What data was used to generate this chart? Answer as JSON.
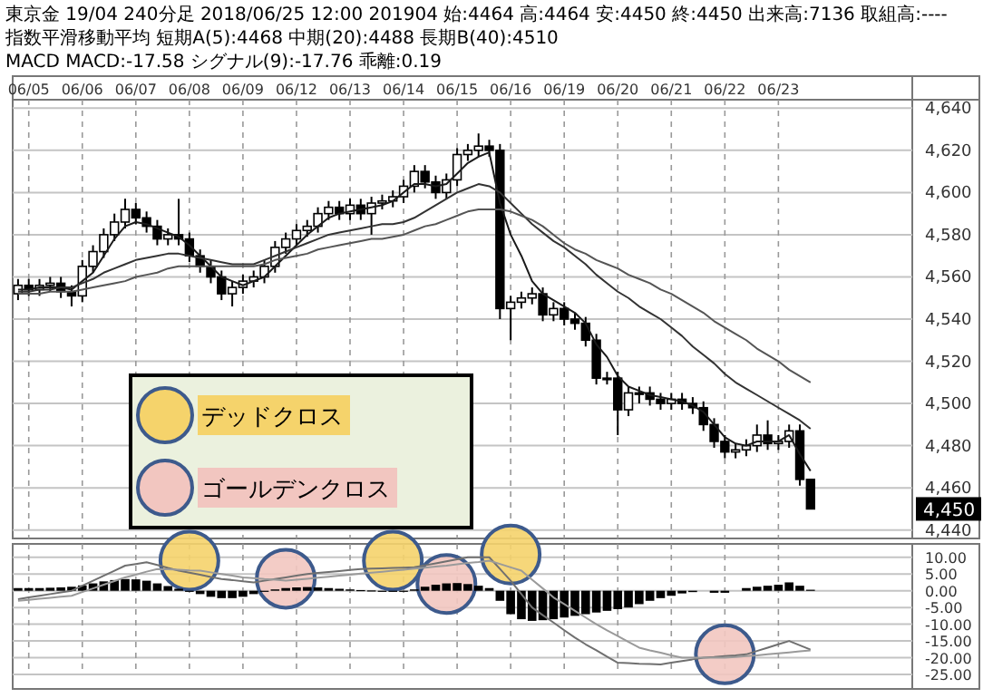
{
  "chart_data": [
    {
      "type": "candlestick",
      "title": "東京金 19/04 240分足 2018/06/25 12:00 201904 始:4464 高:4464 安:4450 終:4450 出来高:7136 取組高:----",
      "subtitle": "指数平滑移動平均 短期A(5):4468 中期(20):4488 長期B(40):4510",
      "grid": true,
      "categories": [
        null,
        "06/05",
        null,
        null,
        null,
        null,
        "06/06",
        null,
        null,
        null,
        null,
        "06/07",
        null,
        null,
        null,
        null,
        "06/08",
        null,
        null,
        null,
        null,
        "06/09",
        null,
        null,
        null,
        null,
        "06/12",
        null,
        null,
        null,
        null,
        "06/13",
        null,
        null,
        null,
        null,
        "06/14",
        null,
        null,
        null,
        null,
        "06/15",
        null,
        null,
        null,
        null,
        "06/16",
        null,
        null,
        null,
        null,
        "06/19",
        null,
        null,
        null,
        null,
        "06/20",
        null,
        null,
        null,
        null,
        "06/21",
        null,
        null,
        null,
        null,
        "06/22",
        null,
        null,
        null,
        null,
        "06/23",
        null,
        null,
        null
      ],
      "ylim": [
        4436,
        4644
      ],
      "yticks": [
        {
          "value": 4440,
          "label": "4,440"
        },
        {
          "value": 4460,
          "label": "4,460"
        },
        {
          "value": 4480,
          "label": "4,480"
        },
        {
          "value": 4500,
          "label": "4,500"
        },
        {
          "value": 4520,
          "label": "4,520"
        },
        {
          "value": 4540,
          "label": "4,540"
        },
        {
          "value": 4560,
          "label": "4,560"
        },
        {
          "value": 4580,
          "label": "4,580"
        },
        {
          "value": 4600,
          "label": "4,600"
        },
        {
          "value": 4620,
          "label": "4,620"
        },
        {
          "value": 4640,
          "label": "4,640"
        }
      ],
      "annotations": [
        "MACD MACD:-17.58 シグナル(9):-17.76 乖離:0.19",
        "4,450"
      ],
      "series": [
        {
          "color": "#000000",
          "ohlc": [
            [
              4552,
              4559,
              4549,
              4556
            ],
            [
              4556,
              4559,
              4551,
              4554
            ],
            [
              4554,
              4559,
              4551,
              4556
            ],
            [
              4556,
              4560,
              4553,
              4557
            ],
            [
              4557,
              4560,
              4550,
              4553
            ],
            [
              4553,
              4556,
              4546,
              4551
            ],
            [
              4551,
              4568,
              4548,
              4565
            ],
            [
              4565,
              4575,
              4562,
              4572
            ],
            [
              4572,
              4583,
              4569,
              4580
            ],
            [
              4580,
              4590,
              4577,
              4586
            ],
            [
              4586,
              4597,
              4583,
              4592
            ],
            [
              4592,
              4595,
              4585,
              4588
            ],
            [
              4588,
              4591,
              4581,
              4584
            ],
            [
              4584,
              4587,
              4575,
              4578
            ],
            [
              4578,
              4583,
              4575,
              4580
            ],
            [
              4580,
              4597,
              4575,
              4578
            ],
            [
              4578,
              4581,
              4567,
              4570
            ],
            [
              4570,
              4573,
              4562,
              4565
            ],
            [
              4565,
              4568,
              4557,
              4560
            ],
            [
              4560,
              4563,
              4549,
              4552
            ],
            [
              4552,
              4558,
              4546,
              4555
            ],
            [
              4555,
              4561,
              4552,
              4558
            ],
            [
              4558,
              4563,
              4555,
              4560
            ],
            [
              4560,
              4568,
              4557,
              4565
            ],
            [
              4565,
              4577,
              4562,
              4574
            ],
            [
              4574,
              4581,
              4571,
              4578
            ],
            [
              4578,
              4585,
              4575,
              4582
            ],
            [
              4582,
              4587,
              4579,
              4584
            ],
            [
              4584,
              4593,
              4581,
              4590
            ],
            [
              4590,
              4596,
              4587,
              4593
            ],
            [
              4593,
              4596,
              4587,
              4590
            ],
            [
              4590,
              4597,
              4587,
              4594
            ],
            [
              4594,
              4597,
              4587,
              4590
            ],
            [
              4590,
              4598,
              4580,
              4595
            ],
            [
              4595,
              4599,
              4592,
              4596
            ],
            [
              4596,
              4601,
              4593,
              4598
            ],
            [
              4598,
              4606,
              4595,
              4603
            ],
            [
              4603,
              4613,
              4600,
              4610
            ],
            [
              4610,
              4613,
              4602,
              4605
            ],
            [
              4605,
              4608,
              4597,
              4600
            ],
            [
              4600,
              4609,
              4597,
              4606
            ],
            [
              4606,
              4621,
              4603,
              4618
            ],
            [
              4618,
              4623,
              4615,
              4620
            ],
            [
              4620,
              4628,
              4617,
              4622
            ],
            [
              4622,
              4625,
              4617,
              4620
            ],
            [
              4620,
              4623,
              4540,
              4545
            ],
            [
              4545,
              4551,
              4530,
              4548
            ],
            [
              4548,
              4553,
              4545,
              4550
            ],
            [
              4550,
              4555,
              4547,
              4552
            ],
            [
              4552,
              4555,
              4539,
              4542
            ],
            [
              4542,
              4548,
              4539,
              4545
            ],
            [
              4545,
              4548,
              4537,
              4540
            ],
            [
              4540,
              4543,
              4535,
              4538
            ],
            [
              4538,
              4541,
              4527,
              4530
            ],
            [
              4530,
              4533,
              4509,
              4512
            ],
            [
              4512,
              4515,
              4509,
              4512
            ],
            [
              4512,
              4515,
              4485,
              4497
            ],
            [
              4497,
              4508,
              4494,
              4505
            ],
            [
              4505,
              4508,
              4500,
              4505
            ],
            [
              4505,
              4508,
              4499,
              4502
            ],
            [
              4502,
              4505,
              4497,
              4500
            ],
            [
              4500,
              4505,
              4497,
              4502
            ],
            [
              4502,
              4505,
              4497,
              4500
            ],
            [
              4500,
              4503,
              4495,
              4498
            ],
            [
              4498,
              4501,
              4487,
              4490
            ],
            [
              4490,
              4493,
              4479,
              4482
            ],
            [
              4482,
              4485,
              4474,
              4477
            ],
            [
              4477,
              4481,
              4474,
              4478
            ],
            [
              4478,
              4483,
              4475,
              4480
            ],
            [
              4480,
              4490,
              4477,
              4485
            ],
            [
              4485,
              4492,
              4478,
              4481
            ],
            [
              4481,
              4485,
              4478,
              4482
            ],
            [
              4482,
              4490,
              4479,
              4487
            ],
            [
              4487,
              4490,
              4461,
              4464
            ],
            [
              4464,
              4464,
              4450,
              4450
            ]
          ]
        },
        {
          "type": "line",
          "color": "#1a1a1a",
          "values": [
            4554,
            4554,
            4555,
            4555,
            4555,
            4554,
            4558,
            4562,
            4570,
            4578,
            4584,
            4586,
            4585,
            4583,
            4581,
            4579,
            4575,
            4570,
            4565,
            4560,
            4558,
            4556,
            4558,
            4560,
            4565,
            4570,
            4575,
            4580,
            4584,
            4588,
            4590,
            4591,
            4592,
            4593,
            4594,
            4596,
            4600,
            4604,
            4604,
            4603,
            4604,
            4609,
            4614,
            4617,
            4619,
            4595,
            4580,
            4570,
            4558,
            4552,
            4549,
            4546,
            4543,
            4538,
            4528,
            4522,
            4513,
            4508,
            4506,
            4504,
            4503,
            4502,
            4501,
            4499,
            4496,
            4490,
            4484,
            4481,
            4480,
            4482,
            4482,
            4482,
            4485,
            4476,
            4468
          ]
        },
        {
          "type": "line",
          "color": "#333333",
          "values": [
            4553,
            4553,
            4554,
            4554,
            4555,
            4555,
            4557,
            4559,
            4562,
            4564,
            4566,
            4568,
            4569,
            4570,
            4571,
            4571,
            4570,
            4569,
            4568,
            4567,
            4566,
            4566,
            4566,
            4568,
            4570,
            4572,
            4574,
            4576,
            4578,
            4580,
            4581,
            4582,
            4583,
            4584,
            4585,
            4585,
            4586,
            4588,
            4591,
            4594,
            4597,
            4600,
            4602,
            4604,
            4603,
            4600,
            4595,
            4590,
            4585,
            4581,
            4577,
            4574,
            4570,
            4566,
            4561,
            4557,
            4553,
            4550,
            4546,
            4543,
            4540,
            4536,
            4532,
            4527,
            4523,
            4519,
            4514,
            4510,
            4507,
            4504,
            4501,
            4498,
            4495,
            4492,
            4488
          ]
        },
        {
          "type": "line",
          "color": "#555555",
          "values": [
            4552,
            4552,
            4552,
            4553,
            4553,
            4553,
            4554,
            4555,
            4556,
            4557,
            4558,
            4560,
            4561,
            4562,
            4564,
            4565,
            4565,
            4565,
            4565,
            4565,
            4565,
            4565,
            4565,
            4566,
            4568,
            4569,
            4570,
            4571,
            4573,
            4574,
            4575,
            4576,
            4577,
            4578,
            4578,
            4579,
            4580,
            4582,
            4584,
            4585,
            4587,
            4589,
            4591,
            4592,
            4592,
            4592,
            4591,
            4589,
            4587,
            4584,
            4580,
            4576,
            4573,
            4571,
            4568,
            4566,
            4564,
            4561,
            4559,
            4557,
            4554,
            4552,
            4549,
            4546,
            4543,
            4539,
            4536,
            4533,
            4530,
            4526,
            4523,
            4520,
            4516,
            4513,
            4510
          ]
        }
      ]
    },
    {
      "type": "bar",
      "grid": true,
      "legend": "top left",
      "categories": [
        null,
        null,
        null,
        null,
        null,
        null,
        null,
        null,
        null,
        null,
        null,
        null,
        null,
        null,
        null,
        null,
        null,
        null,
        null,
        null,
        null,
        null,
        null,
        null,
        null,
        null,
        null,
        null,
        null,
        null,
        null,
        null,
        null,
        null,
        null,
        null,
        null,
        null,
        null,
        null,
        null,
        null,
        null,
        null,
        null,
        null,
        null,
        null,
        null,
        null,
        null,
        null,
        null,
        null,
        null,
        null,
        null,
        null,
        null,
        null,
        null,
        null,
        null,
        null,
        null,
        null,
        null,
        null,
        null,
        null,
        null,
        null,
        null,
        null,
        null
      ],
      "ylim": [
        -25,
        14
      ],
      "yticks": [
        {
          "value": 10,
          "label": "10.00"
        },
        {
          "value": 5,
          "label": "5.00"
        },
        {
          "value": 0,
          "label": "0.00"
        },
        {
          "value": -5,
          "label": "-5.00"
        },
        {
          "value": -10,
          "label": "-10.00"
        },
        {
          "value": -15,
          "label": "-15.00"
        },
        {
          "value": -20,
          "label": "-20.00"
        },
        {
          "value": -25,
          "label": "-25.00"
        }
      ],
      "series": [
        {
          "color": "#000000",
          "values": [
            0.8,
            0.8,
            0.8,
            0.9,
            1.0,
            1.2,
            1.6,
            2.2,
            2.8,
            3.2,
            3.5,
            3.4,
            3.0,
            2.2,
            1.4,
            0.6,
            0.0,
            -1.0,
            -1.8,
            -2.2,
            -2.2,
            -1.8,
            -1.0,
            -0.2,
            0.4,
            0.8,
            1.0,
            1.1,
            1.0,
            0.8,
            0.6,
            0.4,
            0.2,
            0.1,
            -0.2,
            -0.3,
            -0.2,
            0.4,
            1.2,
            1.8,
            2.2,
            2.3,
            2.0,
            1.5,
            0.8,
            -3,
            -7,
            -8.5,
            -9,
            -8.8,
            -8.5,
            -8,
            -7.5,
            -7,
            -6.5,
            -6,
            -5.5,
            -5,
            -4,
            -3,
            -2.2,
            -1.5,
            -0.8,
            -0.4,
            null,
            -0.6,
            -0.6,
            null,
            0.8,
            1.2,
            1.5,
            1.8,
            2.5,
            1.5,
            0.3
          ]
        },
        {
          "type": "line",
          "color": "#707070",
          "values": [
            -2.5,
            -2,
            -1.5,
            -1,
            -0.5,
            0,
            1.5,
            3,
            4.5,
            6,
            7.5,
            8,
            8.5,
            7.7,
            6.8,
            6,
            5.4,
            4.8,
            4.1,
            3.5,
            3.2,
            2.8,
            2.5,
            3,
            3.5,
            4,
            4.5,
            5,
            5.3,
            5.6,
            5.9,
            6.2,
            6.5,
            6.6,
            6.7,
            6.8,
            6.9,
            7,
            7.6,
            8.2,
            8.8,
            9.4,
            10,
            10,
            10,
            6.5,
            3,
            -1,
            -5,
            -7.3,
            -9.5,
            -11.8,
            -14,
            -16,
            -17.8,
            -19.7,
            -21.5,
            -21.6,
            -21.8,
            -21.9,
            -22,
            -21.5,
            -21,
            -20.5,
            -20,
            -19.8,
            -19.5,
            -19.3,
            -19,
            -18,
            -17,
            -16,
            -15,
            -16.3,
            -17.6
          ]
        },
        {
          "type": "line",
          "color": "#9a9a9a",
          "values": [
            -3,
            -2.7,
            -2.4,
            -2.1,
            -1.8,
            -1.5,
            -0.4,
            0.7,
            1.8,
            2.9,
            4,
            4.8,
            5.7,
            6.5,
            6.4,
            6.3,
            6.1,
            6,
            5.5,
            5,
            4.5,
            4,
            3.8,
            3.5,
            3.3,
            3,
            3.3,
            3.6,
            3.9,
            4.2,
            4.5,
            4.8,
            5.1,
            5.4,
            5.7,
            6,
            6.3,
            6.6,
            6.9,
            7.2,
            7.5,
            7.9,
            8.3,
            8.6,
            9,
            8,
            7,
            6,
            3.3,
            0.7,
            -2,
            -4,
            -6,
            -8,
            -10,
            -11.8,
            -13.5,
            -15.3,
            -17,
            -17.8,
            -18.5,
            -19.3,
            -20,
            -20,
            -20,
            -20,
            -20,
            -19.8,
            -19.5,
            -19.3,
            -19,
            -18.7,
            -18.4,
            -18.1,
            -17.8
          ]
        },
        {
          "type": "scatter",
          "marker": "circle",
          "name": "デッドクロス",
          "color": "#f5d36b",
          "values": [
            null,
            null,
            null,
            null,
            null,
            null,
            null,
            null,
            null,
            null,
            null,
            null,
            null,
            null,
            null,
            null,
            9,
            null,
            null,
            null,
            null,
            null,
            null,
            null,
            null,
            null,
            null,
            null,
            null,
            null,
            null,
            null,
            null,
            null,
            null,
            9,
            null,
            null,
            null,
            null,
            null,
            null,
            null,
            null,
            null,
            null,
            10.8,
            null,
            null,
            null,
            null,
            null,
            null,
            null,
            null,
            null,
            null,
            null,
            null,
            null,
            null,
            null,
            null,
            null,
            null,
            null,
            null,
            null,
            null,
            null,
            null,
            null,
            null,
            null,
            null
          ]
        },
        {
          "type": "scatter",
          "marker": "circle",
          "name": "ゴールデンクロス",
          "color": "#f2c6c0",
          "values": [
            null,
            null,
            null,
            null,
            null,
            null,
            null,
            null,
            null,
            null,
            null,
            null,
            null,
            null,
            null,
            null,
            null,
            null,
            null,
            null,
            null,
            null,
            null,
            null,
            null,
            3.6,
            null,
            null,
            null,
            null,
            null,
            null,
            null,
            null,
            null,
            null,
            null,
            null,
            null,
            null,
            2,
            null,
            null,
            null,
            null,
            null,
            null,
            null,
            null,
            null,
            null,
            null,
            null,
            null,
            null,
            null,
            null,
            null,
            null,
            null,
            null,
            null,
            null,
            null,
            null,
            null,
            -19,
            null,
            null,
            null,
            null,
            null,
            null,
            null,
            null
          ]
        }
      ]
    }
  ]
}
